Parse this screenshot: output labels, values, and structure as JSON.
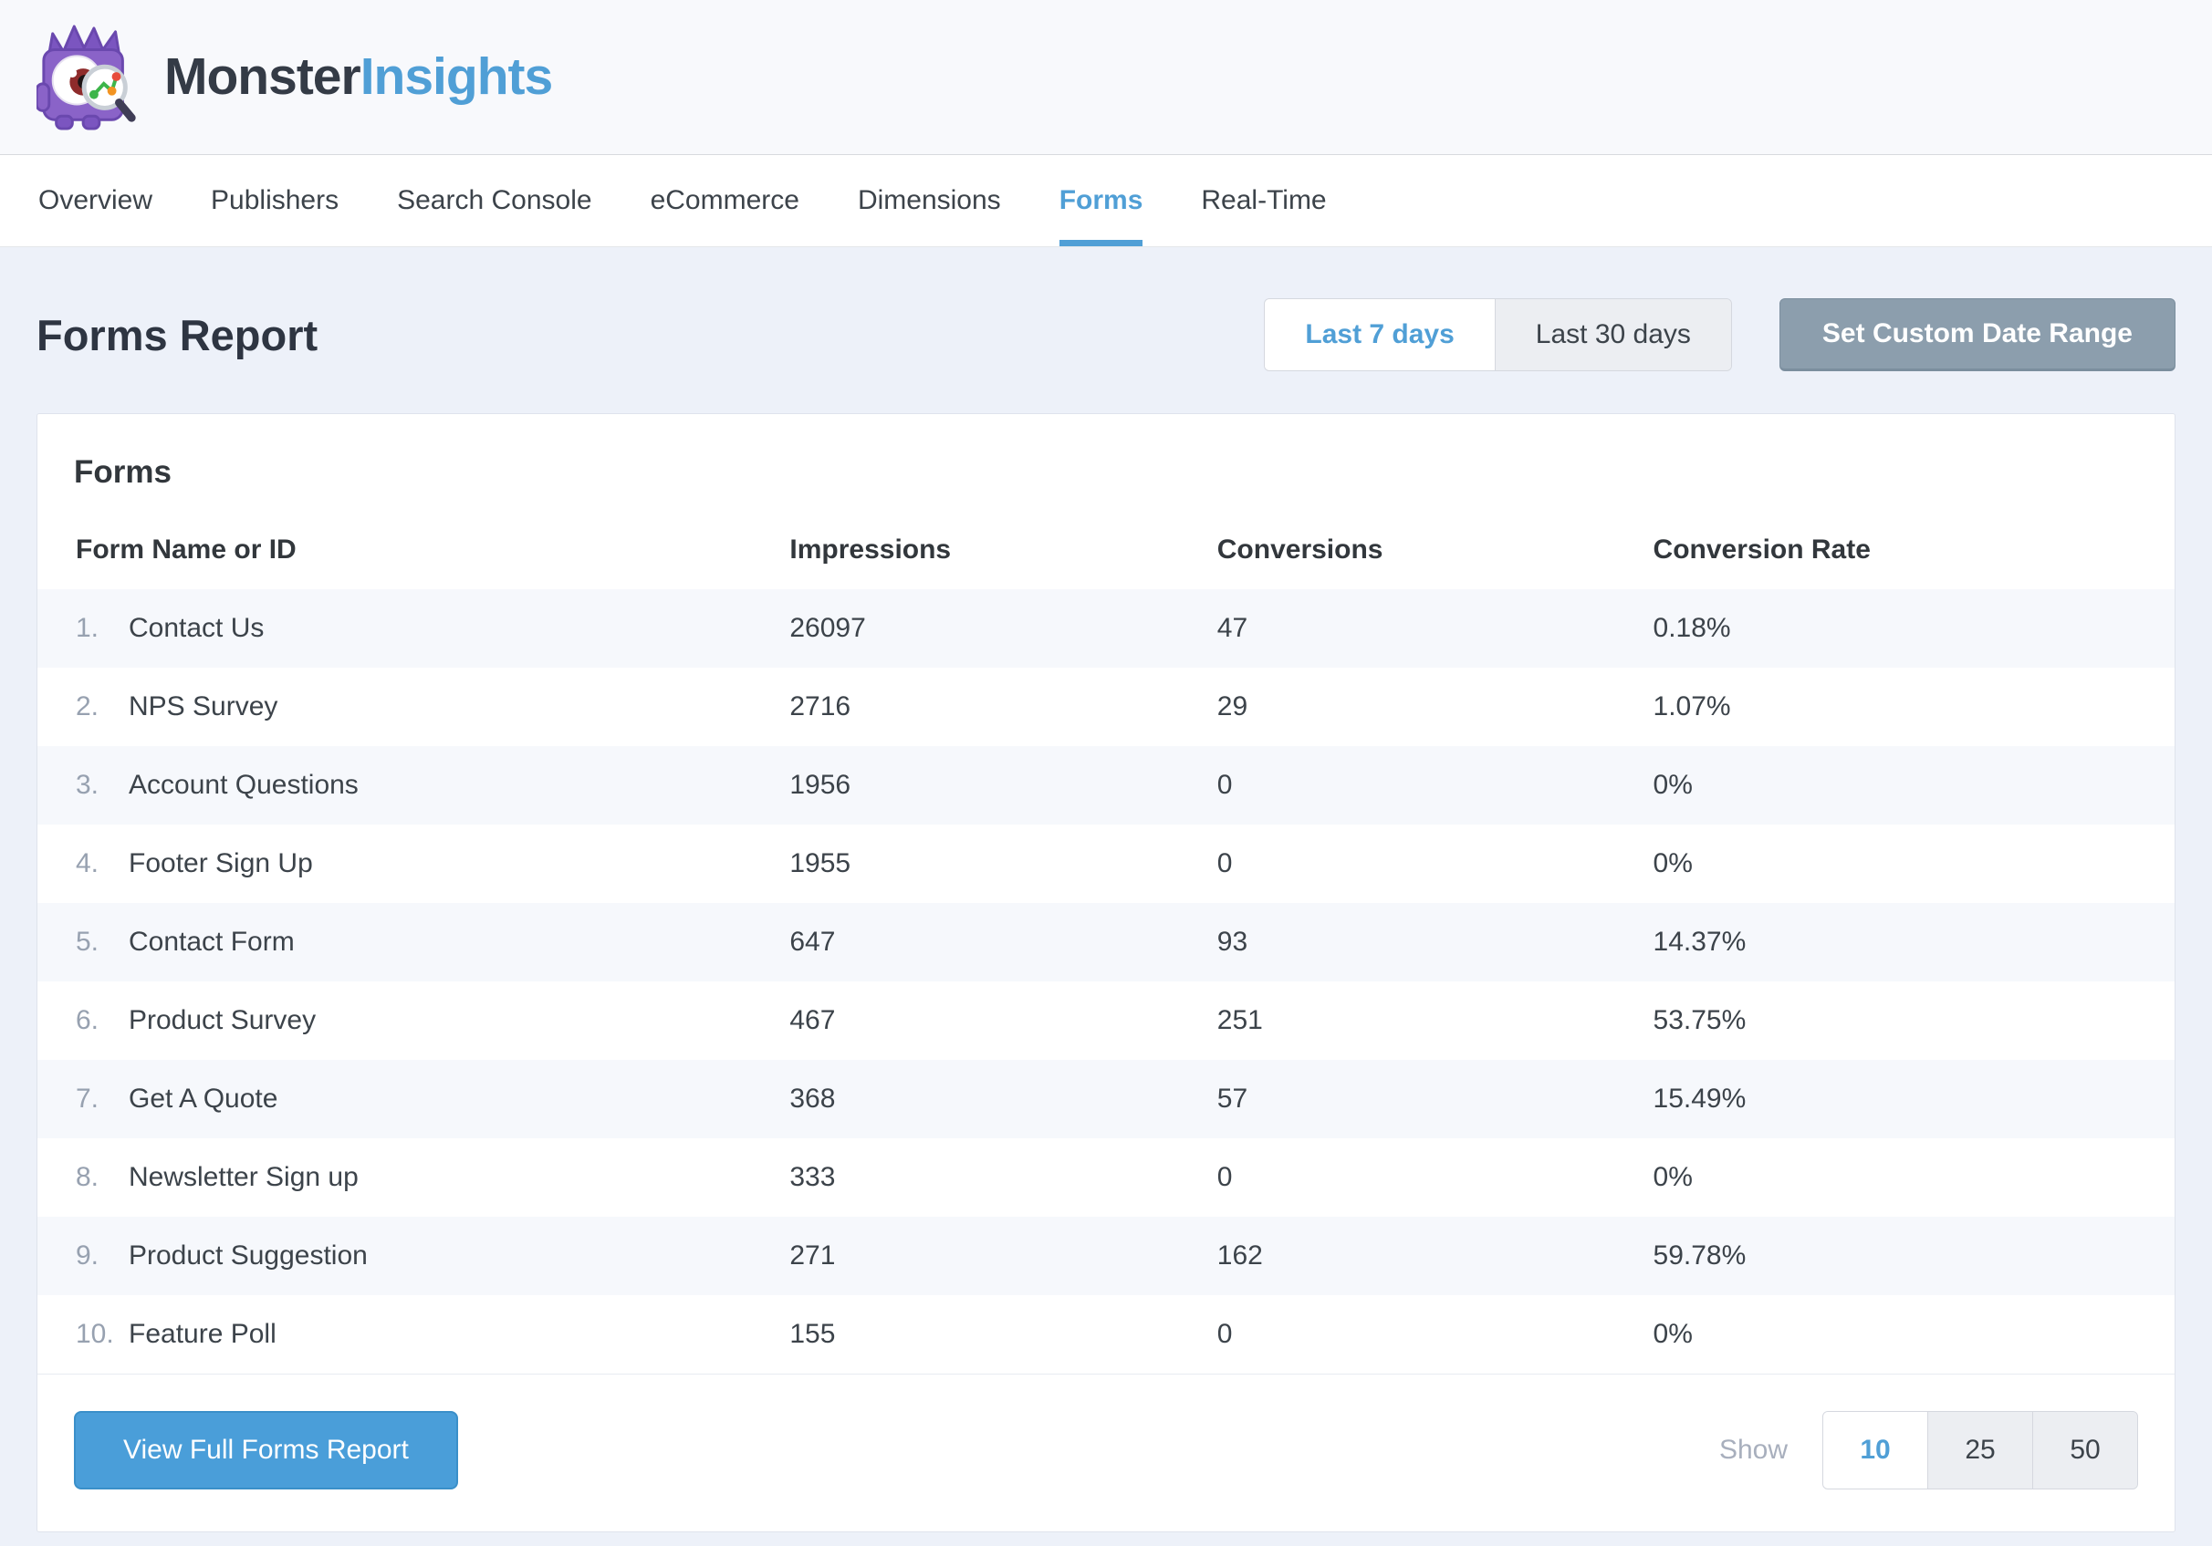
{
  "brand": {
    "name_part1": "Monster",
    "name_part2": "Insights"
  },
  "nav": {
    "items": [
      {
        "label": "Overview",
        "active": false
      },
      {
        "label": "Publishers",
        "active": false
      },
      {
        "label": "Search Console",
        "active": false
      },
      {
        "label": "eCommerce",
        "active": false
      },
      {
        "label": "Dimensions",
        "active": false
      },
      {
        "label": "Forms",
        "active": true
      },
      {
        "label": "Real-Time",
        "active": false
      }
    ]
  },
  "page": {
    "title": "Forms Report"
  },
  "date_range": {
    "options": [
      {
        "label": "Last 7 days",
        "active": true
      },
      {
        "label": "Last 30 days",
        "active": false
      }
    ],
    "custom_button": "Set Custom Date Range"
  },
  "card": {
    "title": "Forms",
    "table": {
      "columns": [
        "Form Name or ID",
        "Impressions",
        "Conversions",
        "Conversion Rate"
      ],
      "rows": [
        {
          "rank": "1.",
          "name": "Contact Us",
          "impressions": "26097",
          "conversions": "47",
          "rate": "0.18%"
        },
        {
          "rank": "2.",
          "name": "NPS Survey",
          "impressions": "2716",
          "conversions": "29",
          "rate": "1.07%"
        },
        {
          "rank": "3.",
          "name": "Account Questions",
          "impressions": "1956",
          "conversions": "0",
          "rate": "0%"
        },
        {
          "rank": "4.",
          "name": "Footer Sign Up",
          "impressions": "1955",
          "conversions": "0",
          "rate": "0%"
        },
        {
          "rank": "5.",
          "name": "Contact Form",
          "impressions": "647",
          "conversions": "93",
          "rate": "14.37%"
        },
        {
          "rank": "6.",
          "name": "Product Survey",
          "impressions": "467",
          "conversions": "251",
          "rate": "53.75%"
        },
        {
          "rank": "7.",
          "name": "Get A Quote",
          "impressions": "368",
          "conversions": "57",
          "rate": "15.49%"
        },
        {
          "rank": "8.",
          "name": "Newsletter Sign up",
          "impressions": "333",
          "conversions": "0",
          "rate": "0%"
        },
        {
          "rank": "9.",
          "name": "Product Suggestion",
          "impressions": "271",
          "conversions": "162",
          "rate": "59.78%"
        },
        {
          "rank": "10.",
          "name": "Feature Poll",
          "impressions": "155",
          "conversions": "0",
          "rate": "0%"
        }
      ]
    },
    "footer": {
      "view_full_report": "View Full Forms Report",
      "show_label": "Show",
      "page_sizes": [
        {
          "label": "10",
          "active": true
        },
        {
          "label": "25",
          "active": false
        },
        {
          "label": "50",
          "active": false
        }
      ]
    }
  },
  "colors": {
    "accent_blue": "#509FD6",
    "primary_button_blue": "#4A9ED9",
    "custom_range_slate": "#8C9EAD",
    "dark_text": "#32373C",
    "muted_rank_gray": "#97A1B0",
    "page_background": "#EDF1F9",
    "row_stripe": "#F6F8FC"
  }
}
